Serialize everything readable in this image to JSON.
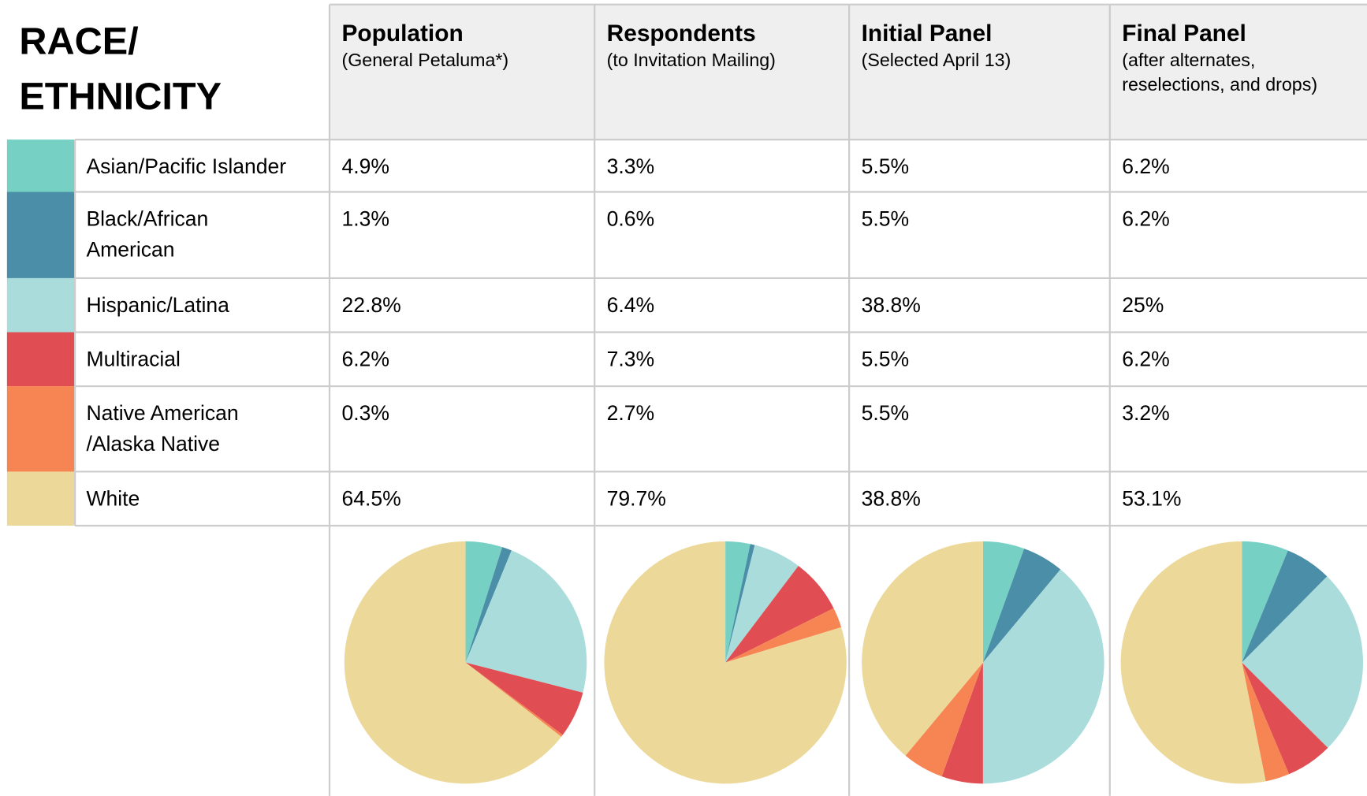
{
  "title": [
    "RACE/",
    "ETHNICITY"
  ],
  "categories": [
    [
      "Asian/Pacific Islander"
    ],
    [
      "Black/African",
      "American"
    ],
    [
      "Hispanic/Latina"
    ],
    [
      "Multiracial"
    ],
    [
      "Native American",
      "/Alaska Native"
    ],
    [
      "White"
    ]
  ],
  "colors": [
    "#76d0c4",
    "#4a8ea8",
    "#aadcdc",
    "#e04e54",
    "#f78553",
    "#ecd99a"
  ],
  "columns": [
    {
      "title": "Population",
      "subtitle": [
        "(General Petaluma*)"
      ],
      "values": [
        4.9,
        1.3,
        22.8,
        6.2,
        0.3,
        64.5
      ],
      "value_labels": [
        "4.9%",
        "1.3%",
        "22.8%",
        "6.2%",
        "0.3%",
        "64.5%"
      ]
    },
    {
      "title": "Respondents",
      "subtitle": [
        "(to Invitation Mailing)"
      ],
      "values": [
        3.3,
        0.6,
        6.4,
        7.3,
        2.7,
        79.7
      ],
      "value_labels": [
        "3.3%",
        "0.6%",
        "6.4%",
        "7.3%",
        "2.7%",
        "79.7%"
      ]
    },
    {
      "title": "Initial Panel",
      "subtitle": [
        "(Selected April 13)"
      ],
      "values": [
        5.5,
        5.5,
        38.8,
        5.5,
        5.5,
        38.8
      ],
      "value_labels": [
        "5.5%",
        "5.5%",
        "38.8%",
        "5.5%",
        "5.5%",
        "38.8%"
      ]
    },
    {
      "title": "Final Panel",
      "subtitle": [
        "(after alternates,",
        "reselections, and drops)"
      ],
      "values": [
        6.2,
        6.2,
        25,
        6.2,
        3.2,
        53.1
      ],
      "value_labels": [
        "6.2%",
        "6.2%",
        "25%",
        "6.2%",
        "3.2%",
        "53.1%"
      ]
    }
  ]
}
